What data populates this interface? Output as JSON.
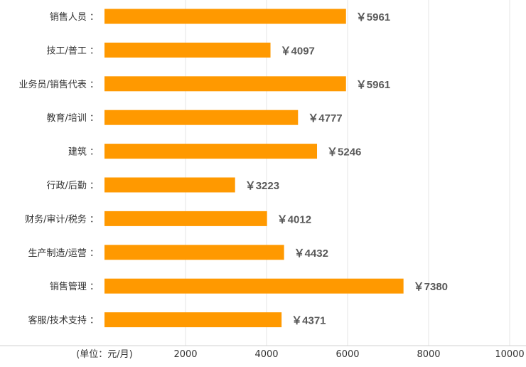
{
  "chart_data": {
    "type": "bar",
    "orientation": "horizontal",
    "categories": [
      "销售人员",
      "技工/普工",
      "业务员/销售代表",
      "教育/培训",
      "建筑",
      "行政/后勤",
      "财务/审计/税务",
      "生产制造/运营",
      "销售管理",
      "客服/技术支持"
    ],
    "values": [
      5961,
      4097,
      5961,
      4777,
      5246,
      3223,
      4012,
      4432,
      7380,
      4371
    ],
    "value_prefix": "￥",
    "category_suffix": " ：",
    "xlim": [
      0,
      10000
    ],
    "xticks": [
      2000,
      4000,
      6000,
      8000,
      10000
    ],
    "unit_label": "(单位：元/月)",
    "grid": true,
    "bar_color": "#ff9900"
  }
}
